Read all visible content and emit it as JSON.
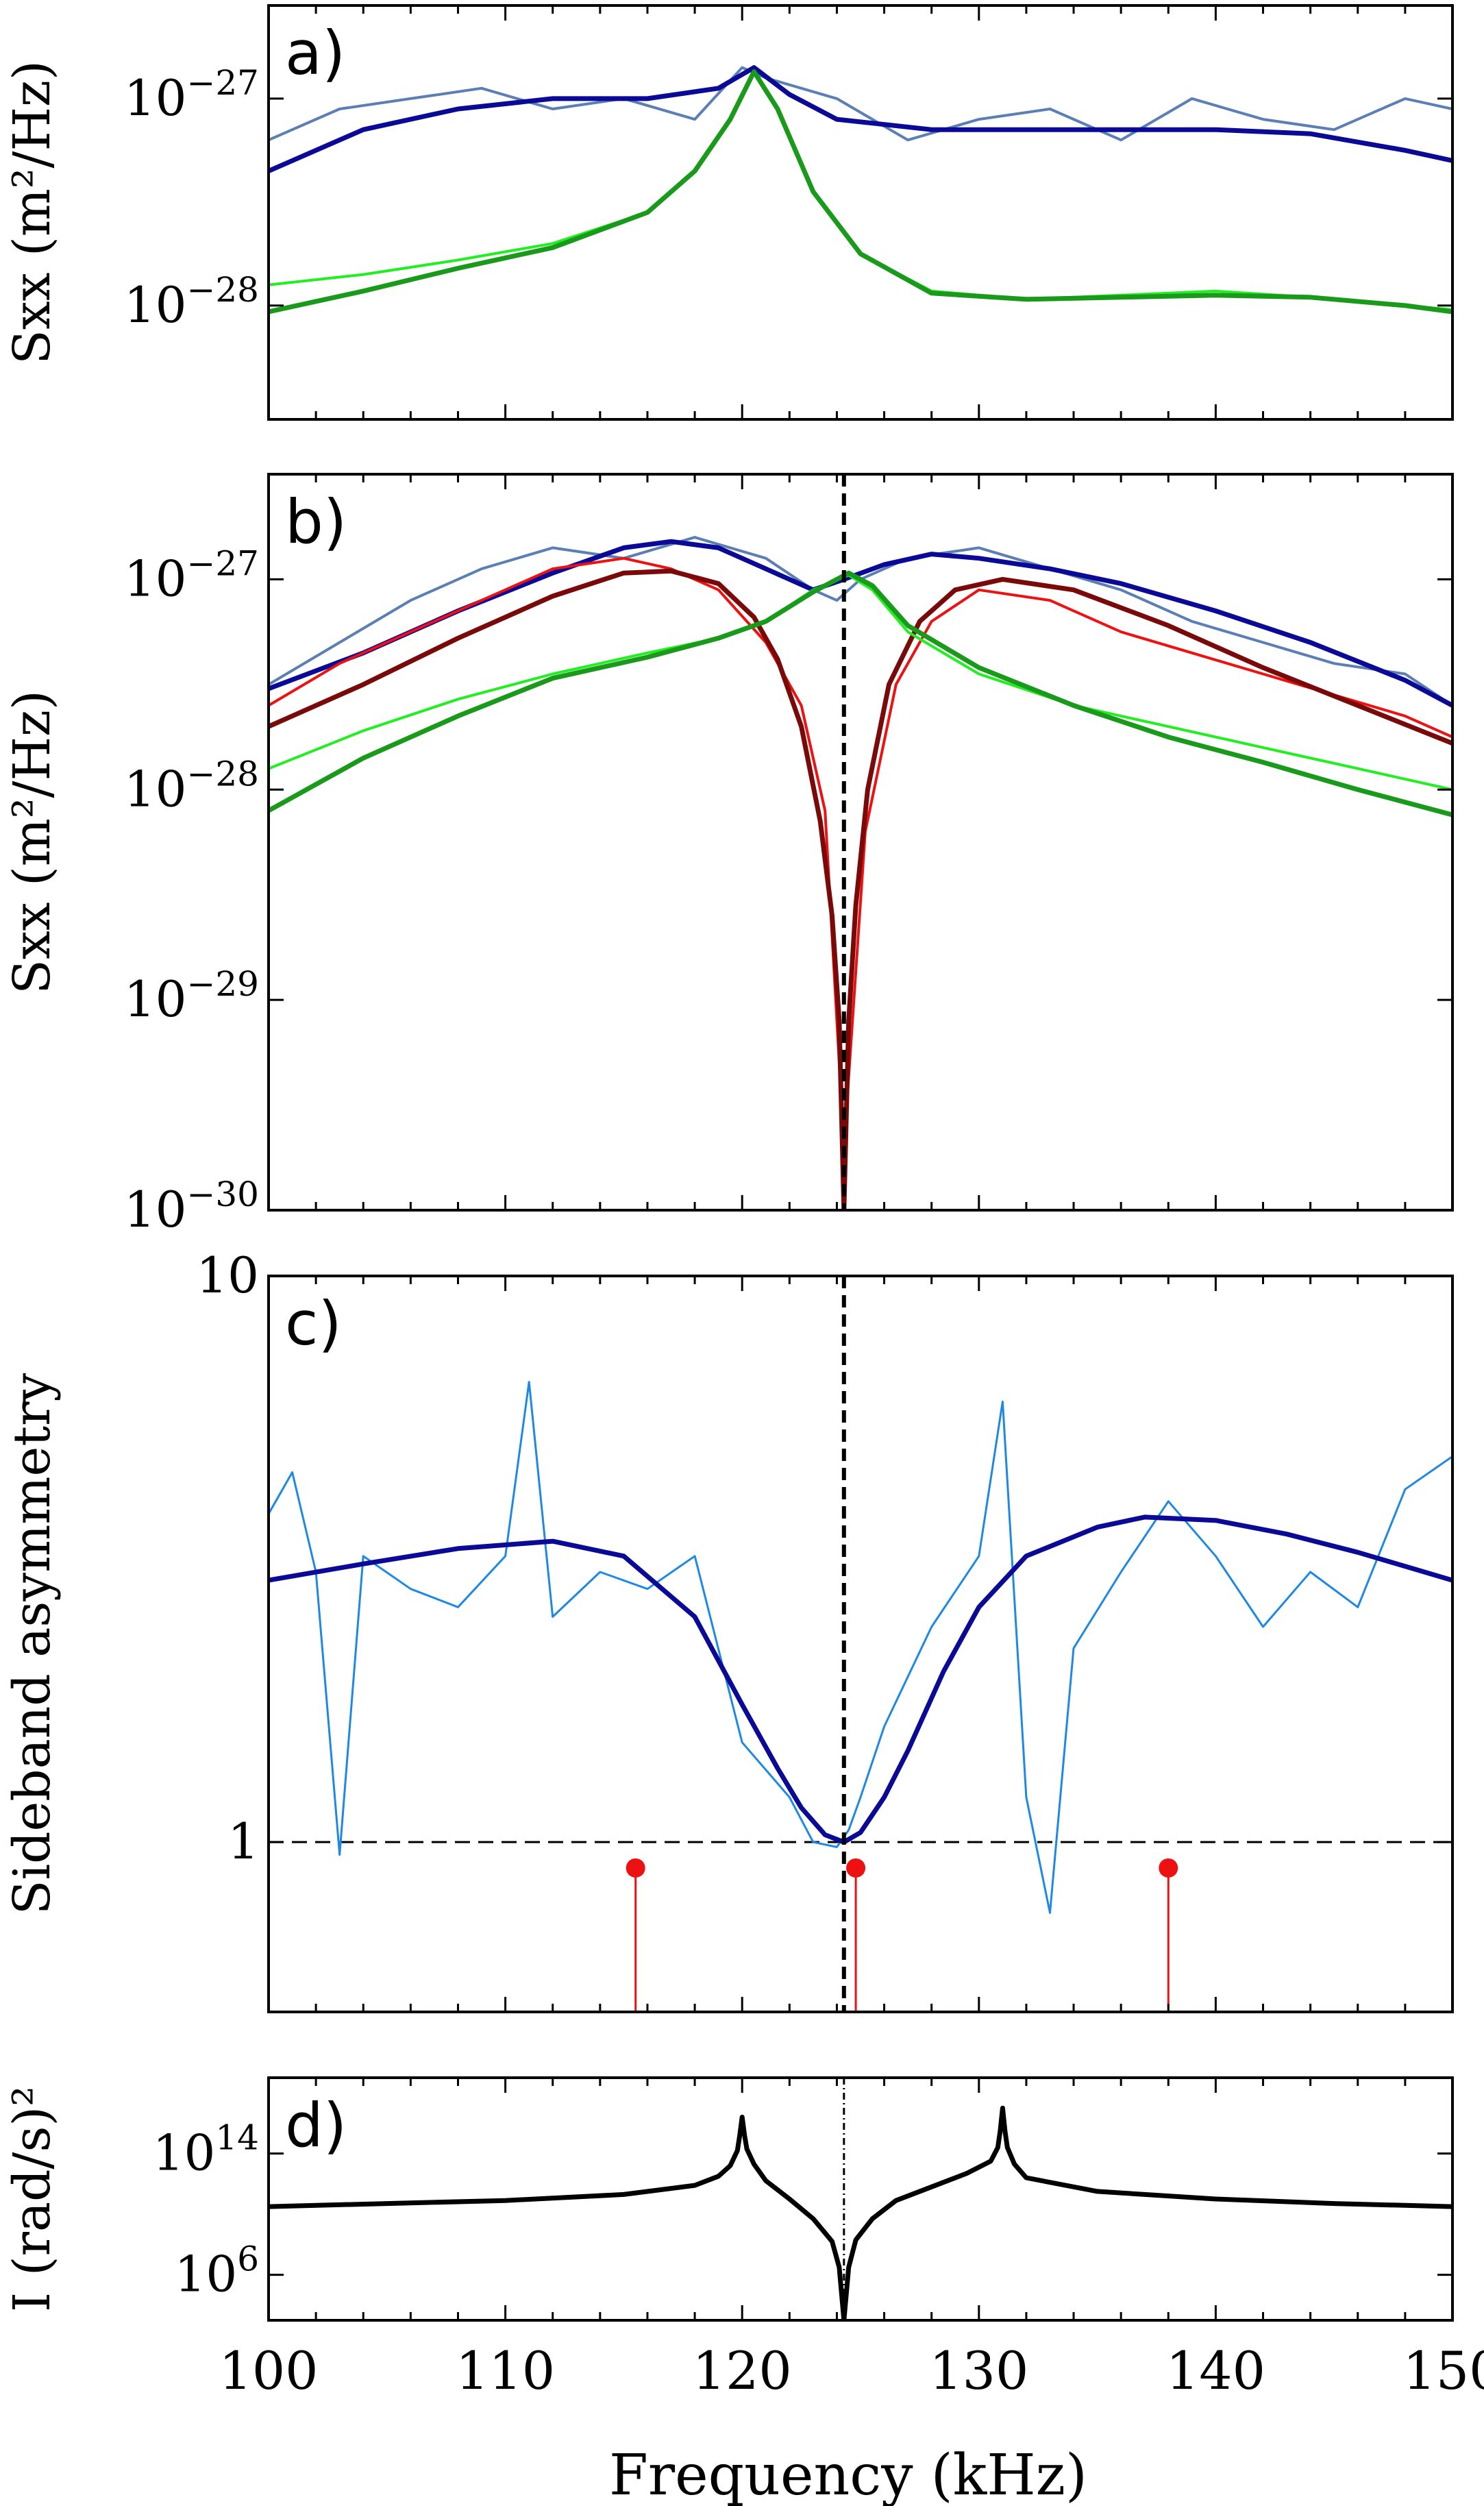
{
  "xaxis": {
    "label": "Frequency (kHz)",
    "ticks": [
      "100",
      "110",
      "120",
      "130",
      "140",
      "150"
    ],
    "lim": [
      100,
      150
    ]
  },
  "colors": {
    "light_blue": "#5b7fb5",
    "dark_blue": "#0a0a96",
    "bright_green": "#22ee22",
    "dark_green": "#1a9a1a",
    "red": "#ee1111",
    "dark_red": "#7a0a0a",
    "thin_blue": "#1e88e5",
    "black": "#000000"
  },
  "chart_data": [
    {
      "panel": "a)",
      "type": "line",
      "yscale": "log",
      "ylabel": "Sxx (m²/Hz)",
      "ylim_log10": [
        -28.55,
        -26.55
      ],
      "yticks": [
        {
          "base": "10",
          "exp": "−27",
          "log10": -27
        },
        {
          "base": "10",
          "exp": "−28",
          "log10": -28
        }
      ],
      "series": [
        {
          "role": "measured",
          "color": "#5b7fb5",
          "x": [
            100,
            103,
            106,
            109,
            112,
            115,
            118,
            120,
            121,
            124,
            127,
            130,
            133,
            136,
            139,
            142,
            145,
            148,
            150
          ],
          "log10_y": [
            -27.2,
            -27.05,
            -27.0,
            -26.95,
            -27.05,
            -27.0,
            -27.1,
            -26.85,
            -26.9,
            -27.0,
            -27.2,
            -27.1,
            -27.05,
            -27.2,
            -27.0,
            -27.1,
            -27.15,
            -27.0,
            -27.05
          ]
        },
        {
          "role": "fit-blue",
          "color": "#0a0a96",
          "x": [
            100,
            104,
            108,
            112,
            116,
            119,
            120.5,
            122,
            124,
            128,
            132,
            136,
            140,
            144,
            148,
            150
          ],
          "log10_y": [
            -27.35,
            -27.15,
            -27.05,
            -27.0,
            -27.0,
            -26.95,
            -26.85,
            -26.98,
            -27.1,
            -27.15,
            -27.15,
            -27.15,
            -27.15,
            -27.17,
            -27.25,
            -27.3
          ]
        },
        {
          "role": "measured",
          "color": "#22ee22",
          "x": [
            100,
            104,
            108,
            112,
            116,
            118,
            119.5,
            120.5,
            121.5,
            123,
            125,
            128,
            132,
            136,
            140,
            144,
            148,
            150
          ],
          "log10_y": [
            -27.9,
            -27.85,
            -27.78,
            -27.7,
            -27.55,
            -27.35,
            -27.1,
            -26.87,
            -27.05,
            -27.45,
            -27.75,
            -27.93,
            -27.97,
            -27.95,
            -27.93,
            -27.96,
            -28.0,
            -28.02
          ]
        },
        {
          "role": "fit-green",
          "color": "#1a9a1a",
          "x": [
            100,
            104,
            108,
            112,
            116,
            118,
            119.5,
            120.5,
            121.5,
            123,
            125,
            128,
            132,
            136,
            140,
            144,
            148,
            150
          ],
          "log10_y": [
            -28.03,
            -27.93,
            -27.82,
            -27.72,
            -27.55,
            -27.35,
            -27.1,
            -26.87,
            -27.05,
            -27.45,
            -27.75,
            -27.94,
            -27.97,
            -27.96,
            -27.95,
            -27.96,
            -28.0,
            -28.03
          ]
        }
      ]
    },
    {
      "panel": "b)",
      "type": "line",
      "yscale": "log",
      "ylabel": "Sxx (m²/Hz)",
      "ylim_log10": [
        -30.0,
        -26.5
      ],
      "yticks": [
        {
          "base": "10",
          "exp": "−27",
          "log10": -27
        },
        {
          "base": "10",
          "exp": "−28",
          "log10": -28
        },
        {
          "base": "10",
          "exp": "−29",
          "log10": -29
        },
        {
          "base": "10",
          "exp": "−30",
          "log10": -30
        }
      ],
      "vline_x": 124.3,
      "series": [
        {
          "role": "measured",
          "color": "#5b7fb5",
          "x": [
            100,
            103,
            106,
            109,
            112,
            115,
            118,
            121,
            123,
            124,
            125,
            127,
            130,
            133,
            136,
            139,
            142,
            145,
            148,
            150
          ],
          "log10_y": [
            -27.5,
            -27.3,
            -27.1,
            -26.95,
            -26.85,
            -26.9,
            -26.8,
            -26.9,
            -27.05,
            -27.1,
            -27.0,
            -26.9,
            -26.85,
            -26.95,
            -27.05,
            -27.2,
            -27.3,
            -27.4,
            -27.45,
            -27.6
          ]
        },
        {
          "role": "fit-blue",
          "color": "#0a0a96",
          "x": [
            100,
            104,
            108,
            112,
            115,
            117,
            119,
            121,
            123,
            124.3,
            126,
            128,
            130,
            133,
            136,
            140,
            144,
            148,
            150
          ],
          "log10_y": [
            -27.52,
            -27.35,
            -27.15,
            -26.97,
            -26.85,
            -26.82,
            -26.85,
            -26.95,
            -27.05,
            -27.0,
            -26.93,
            -26.88,
            -26.9,
            -26.95,
            -27.02,
            -27.15,
            -27.3,
            -27.48,
            -27.6
          ]
        },
        {
          "role": "measured",
          "color": "#ee1111",
          "x": [
            100,
            103,
            106,
            109,
            112,
            115,
            117,
            119,
            121,
            122.5,
            123.5,
            124.3,
            125.2,
            126.5,
            128,
            130,
            133,
            136,
            139,
            142,
            145,
            148,
            150
          ],
          "log10_y": [
            -27.6,
            -27.4,
            -27.25,
            -27.1,
            -26.95,
            -26.9,
            -26.95,
            -27.05,
            -27.3,
            -27.6,
            -28.1,
            -29.7,
            -28.2,
            -27.5,
            -27.2,
            -27.05,
            -27.1,
            -27.25,
            -27.35,
            -27.45,
            -27.55,
            -27.65,
            -27.75
          ]
        },
        {
          "role": "fit-red",
          "color": "#7a0a0a",
          "x": [
            100,
            104,
            108,
            112,
            115,
            117,
            119,
            120.5,
            121.5,
            122.5,
            123.3,
            123.8,
            124.1,
            124.3,
            124.5,
            124.8,
            125.3,
            126.2,
            127.5,
            129,
            131,
            134,
            138,
            142,
            146,
            150
          ],
          "log10_y": [
            -27.7,
            -27.5,
            -27.28,
            -27.08,
            -26.97,
            -26.96,
            -27.02,
            -27.18,
            -27.38,
            -27.7,
            -28.15,
            -28.6,
            -29.1,
            -30.0,
            -29.1,
            -28.55,
            -28.0,
            -27.5,
            -27.2,
            -27.05,
            -27.0,
            -27.05,
            -27.22,
            -27.42,
            -27.6,
            -27.78
          ]
        },
        {
          "role": "measured",
          "color": "#22ee22",
          "x": [
            100,
            104,
            108,
            112,
            116,
            119,
            121,
            123,
            124.5,
            125.5,
            127,
            130,
            134,
            138,
            142,
            146,
            150
          ],
          "log10_y": [
            -27.9,
            -27.72,
            -27.57,
            -27.45,
            -27.35,
            -27.28,
            -27.2,
            -27.05,
            -26.98,
            -27.05,
            -27.25,
            -27.45,
            -27.6,
            -27.7,
            -27.8,
            -27.9,
            -28.0
          ]
        },
        {
          "role": "fit-green",
          "color": "#1a9a1a",
          "x": [
            100,
            104,
            108,
            112,
            116,
            119,
            121,
            123,
            124.5,
            125.5,
            127,
            130,
            134,
            138,
            142,
            146,
            150
          ],
          "log10_y": [
            -28.1,
            -27.85,
            -27.65,
            -27.47,
            -27.37,
            -27.28,
            -27.2,
            -27.06,
            -26.97,
            -27.03,
            -27.22,
            -27.42,
            -27.6,
            -27.75,
            -27.87,
            -28.0,
            -28.12
          ]
        }
      ]
    },
    {
      "panel": "c)",
      "type": "line",
      "yscale": "log",
      "ylabel": "Sideband asymmetry",
      "ylim_log10": [
        -0.3,
        1.0
      ],
      "yticks": [
        {
          "label": "10",
          "log10": 1
        },
        {
          "label": "1",
          "log10": 0
        }
      ],
      "vline_x": 124.3,
      "hline_y": 1,
      "series": [
        {
          "role": "measured",
          "color": "#1e88e5",
          "x": [
            100,
            101,
            102,
            103,
            104,
            106,
            108,
            110,
            111,
            112,
            114,
            116,
            118,
            120,
            122,
            123,
            124,
            124.5,
            125,
            126,
            128,
            130,
            131,
            132,
            133,
            134,
            136,
            138,
            140,
            142,
            144,
            146,
            148,
            150
          ],
          "y": [
            3.8,
            4.5,
            3.0,
            0.95,
            3.2,
            2.8,
            2.6,
            3.2,
            6.5,
            2.5,
            3.0,
            2.8,
            3.2,
            1.5,
            1.2,
            1.0,
            0.98,
            1.05,
            1.2,
            1.6,
            2.4,
            3.2,
            6.0,
            1.2,
            0.75,
            2.2,
            3.0,
            4.0,
            3.2,
            2.4,
            3.0,
            2.6,
            4.2,
            4.8
          ]
        },
        {
          "role": "fit",
          "color": "#0a0a96",
          "x": [
            100,
            104,
            108,
            112,
            115,
            118,
            120,
            121.5,
            122.5,
            123.5,
            124.3,
            125,
            126,
            127,
            128.5,
            130,
            132,
            135,
            137,
            140,
            143,
            146,
            150
          ],
          "y": [
            2.9,
            3.1,
            3.3,
            3.4,
            3.2,
            2.5,
            1.75,
            1.35,
            1.15,
            1.03,
            1.0,
            1.04,
            1.2,
            1.45,
            2.0,
            2.6,
            3.2,
            3.6,
            3.75,
            3.7,
            3.5,
            3.25,
            2.9
          ]
        }
      ],
      "stems": {
        "color": "#ee1111",
        "x": [
          115.5,
          124.8,
          138.0
        ],
        "y": [
          0.9,
          0.9,
          0.9
        ]
      }
    },
    {
      "panel": "d)",
      "type": "line",
      "yscale": "log",
      "ylabel": "I (rad/s)²",
      "ylim_log10": [
        3.0,
        19.0
      ],
      "yticks": [
        {
          "base": "10",
          "exp": "14",
          "log10": 14
        },
        {
          "base": "10",
          "exp": "6",
          "log10": 6
        }
      ],
      "vline_x": 124.3,
      "series": [
        {
          "role": "response",
          "color": "#000000",
          "x": [
            100,
            105,
            110,
            115,
            118,
            119,
            119.5,
            119.8,
            119.9,
            120,
            120.1,
            120.2,
            120.5,
            121,
            122,
            123,
            123.8,
            124.1,
            124.3,
            124.5,
            124.8,
            125.5,
            126.5,
            128,
            129.5,
            130.5,
            130.8,
            130.9,
            131,
            131.1,
            131.2,
            131.5,
            132,
            135,
            140,
            145,
            150
          ],
          "log10_y": [
            10.5,
            10.7,
            10.9,
            11.3,
            11.9,
            12.5,
            13.2,
            14.2,
            15.2,
            16.4,
            15.2,
            14.3,
            13.3,
            12.2,
            11.0,
            9.7,
            8.2,
            6.5,
            3.0,
            6.5,
            8.3,
            9.7,
            10.9,
            11.8,
            12.7,
            13.5,
            14.4,
            15.5,
            17.0,
            15.5,
            14.4,
            13.3,
            12.4,
            11.5,
            11.0,
            10.7,
            10.5
          ]
        }
      ]
    }
  ]
}
